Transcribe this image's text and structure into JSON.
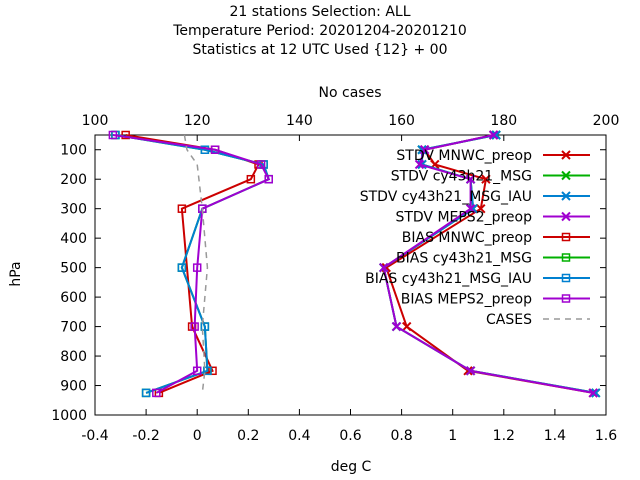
{
  "chart_data": {
    "type": "line",
    "title_lines": [
      "21 stations Selection: ALL",
      "Temperature  Period: 20201204-20201210",
      "Statistics at 12 UTC  Used {12} + 00"
    ],
    "x2label": "No cases",
    "xlabel": "deg C",
    "ylabel": "hPa",
    "xlim": [
      -0.4,
      1.6
    ],
    "x2lim": [
      100,
      200
    ],
    "ylim": [
      1000,
      50
    ],
    "y_reversed": true,
    "x_ticks": [
      "-0.4",
      "-0.2",
      "0",
      "0.2",
      "0.4",
      "0.6",
      "0.8",
      "1",
      "1.2",
      "1.4",
      "1.6"
    ],
    "x2_ticks": [
      "100",
      "120",
      "140",
      "160",
      "180",
      "200"
    ],
    "y_ticks": [
      "100",
      "200",
      "300",
      "400",
      "500",
      "600",
      "700",
      "800",
      "900",
      "1000"
    ],
    "legend_position": "top-right",
    "levels": [
      50,
      100,
      150,
      200,
      300,
      500,
      700,
      850,
      925
    ],
    "series": [
      {
        "name": "STDV MNWC_preop",
        "color": "#cc0000",
        "marker": "x",
        "values": [
          1.16,
          0.89,
          0.93,
          1.13,
          1.11,
          0.74,
          0.82,
          1.06,
          1.55
        ]
      },
      {
        "name": "STDV cy43h21_MSG",
        "color": "#00b000",
        "marker": "x",
        "values": [
          1.17,
          0.88,
          0.88,
          1.07,
          1.08,
          0.73,
          0.78,
          1.07,
          1.56
        ]
      },
      {
        "name": "STDV cy43h21_MSG_IAU",
        "color": "#0080d0",
        "marker": "x",
        "values": [
          1.17,
          0.88,
          0.88,
          1.07,
          1.08,
          0.73,
          0.78,
          1.07,
          1.56
        ]
      },
      {
        "name": "STDV MEPS2_preop",
        "color": "#a000d0",
        "marker": "x",
        "values": [
          1.16,
          0.89,
          0.87,
          1.07,
          1.07,
          0.73,
          0.78,
          1.07,
          1.55
        ]
      },
      {
        "name": "BIAS MNWC_preop",
        "color": "#cc0000",
        "marker": "square",
        "values": [
          -0.28,
          0.07,
          0.24,
          0.21,
          -0.06,
          null,
          -0.02,
          0.06,
          -0.15
        ]
      },
      {
        "name": "BIAS cy43h21_MSG",
        "color": "#00b000",
        "marker": "square",
        "values": [
          -0.32,
          0.03,
          0.26,
          0.28,
          0.02,
          -0.06,
          0.03,
          0.04,
          -0.2
        ]
      },
      {
        "name": "BIAS cy43h21_MSG_IAU",
        "color": "#0080d0",
        "marker": "square",
        "values": [
          -0.32,
          0.03,
          0.26,
          0.28,
          0.02,
          -0.06,
          0.03,
          0.04,
          -0.2
        ]
      },
      {
        "name": "BIAS MEPS2_preop",
        "color": "#a000d0",
        "marker": "square",
        "values": [
          -0.33,
          0.07,
          0.25,
          0.28,
          0.02,
          0.0,
          -0.01,
          0.0,
          -0.16
        ]
      },
      {
        "name": "CASES",
        "color": "#999999",
        "marker": "none",
        "dashed": true,
        "axis": "x2",
        "x2_levels": [
          50,
          100,
          150,
          300,
          500,
          600,
          700,
          850,
          925
        ],
        "values": [
          117.5,
          118,
          120,
          121,
          122,
          121.5,
          121,
          121.5,
          121
        ]
      }
    ]
  }
}
